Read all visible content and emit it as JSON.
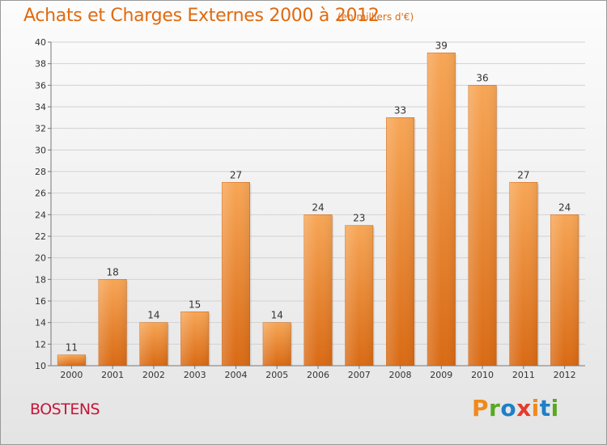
{
  "chart_data": {
    "type": "bar",
    "title": "Achats et Charges Externes 2000 à 2012",
    "subtitle": "(en milliers d'€)",
    "categories": [
      "2000",
      "2001",
      "2002",
      "2003",
      "2004",
      "2005",
      "2006",
      "2007",
      "2008",
      "2009",
      "2010",
      "2011",
      "2012"
    ],
    "values": [
      11,
      18,
      14,
      15,
      27,
      14,
      24,
      23,
      33,
      39,
      36,
      27,
      24
    ],
    "ylim": [
      10,
      40
    ],
    "yticks": [
      10,
      12,
      14,
      16,
      18,
      20,
      22,
      24,
      26,
      28,
      30,
      32,
      34,
      36,
      38,
      40
    ],
    "grid": true,
    "bar_color_top": "#f7a656",
    "bar_color_bottom": "#d96a14",
    "xlabel": "",
    "ylabel": ""
  },
  "footer": {
    "location": "BOSTENS",
    "logo_text": "Proxiti",
    "logo_colors": [
      "#f08a1c",
      "#5aa820",
      "#1f7fc8",
      "#e53a2a",
      "#f08a1c",
      "#1f7fc8",
      "#5aa820"
    ]
  },
  "colors": {
    "title": "#e06a10",
    "location": "#c4163a"
  }
}
